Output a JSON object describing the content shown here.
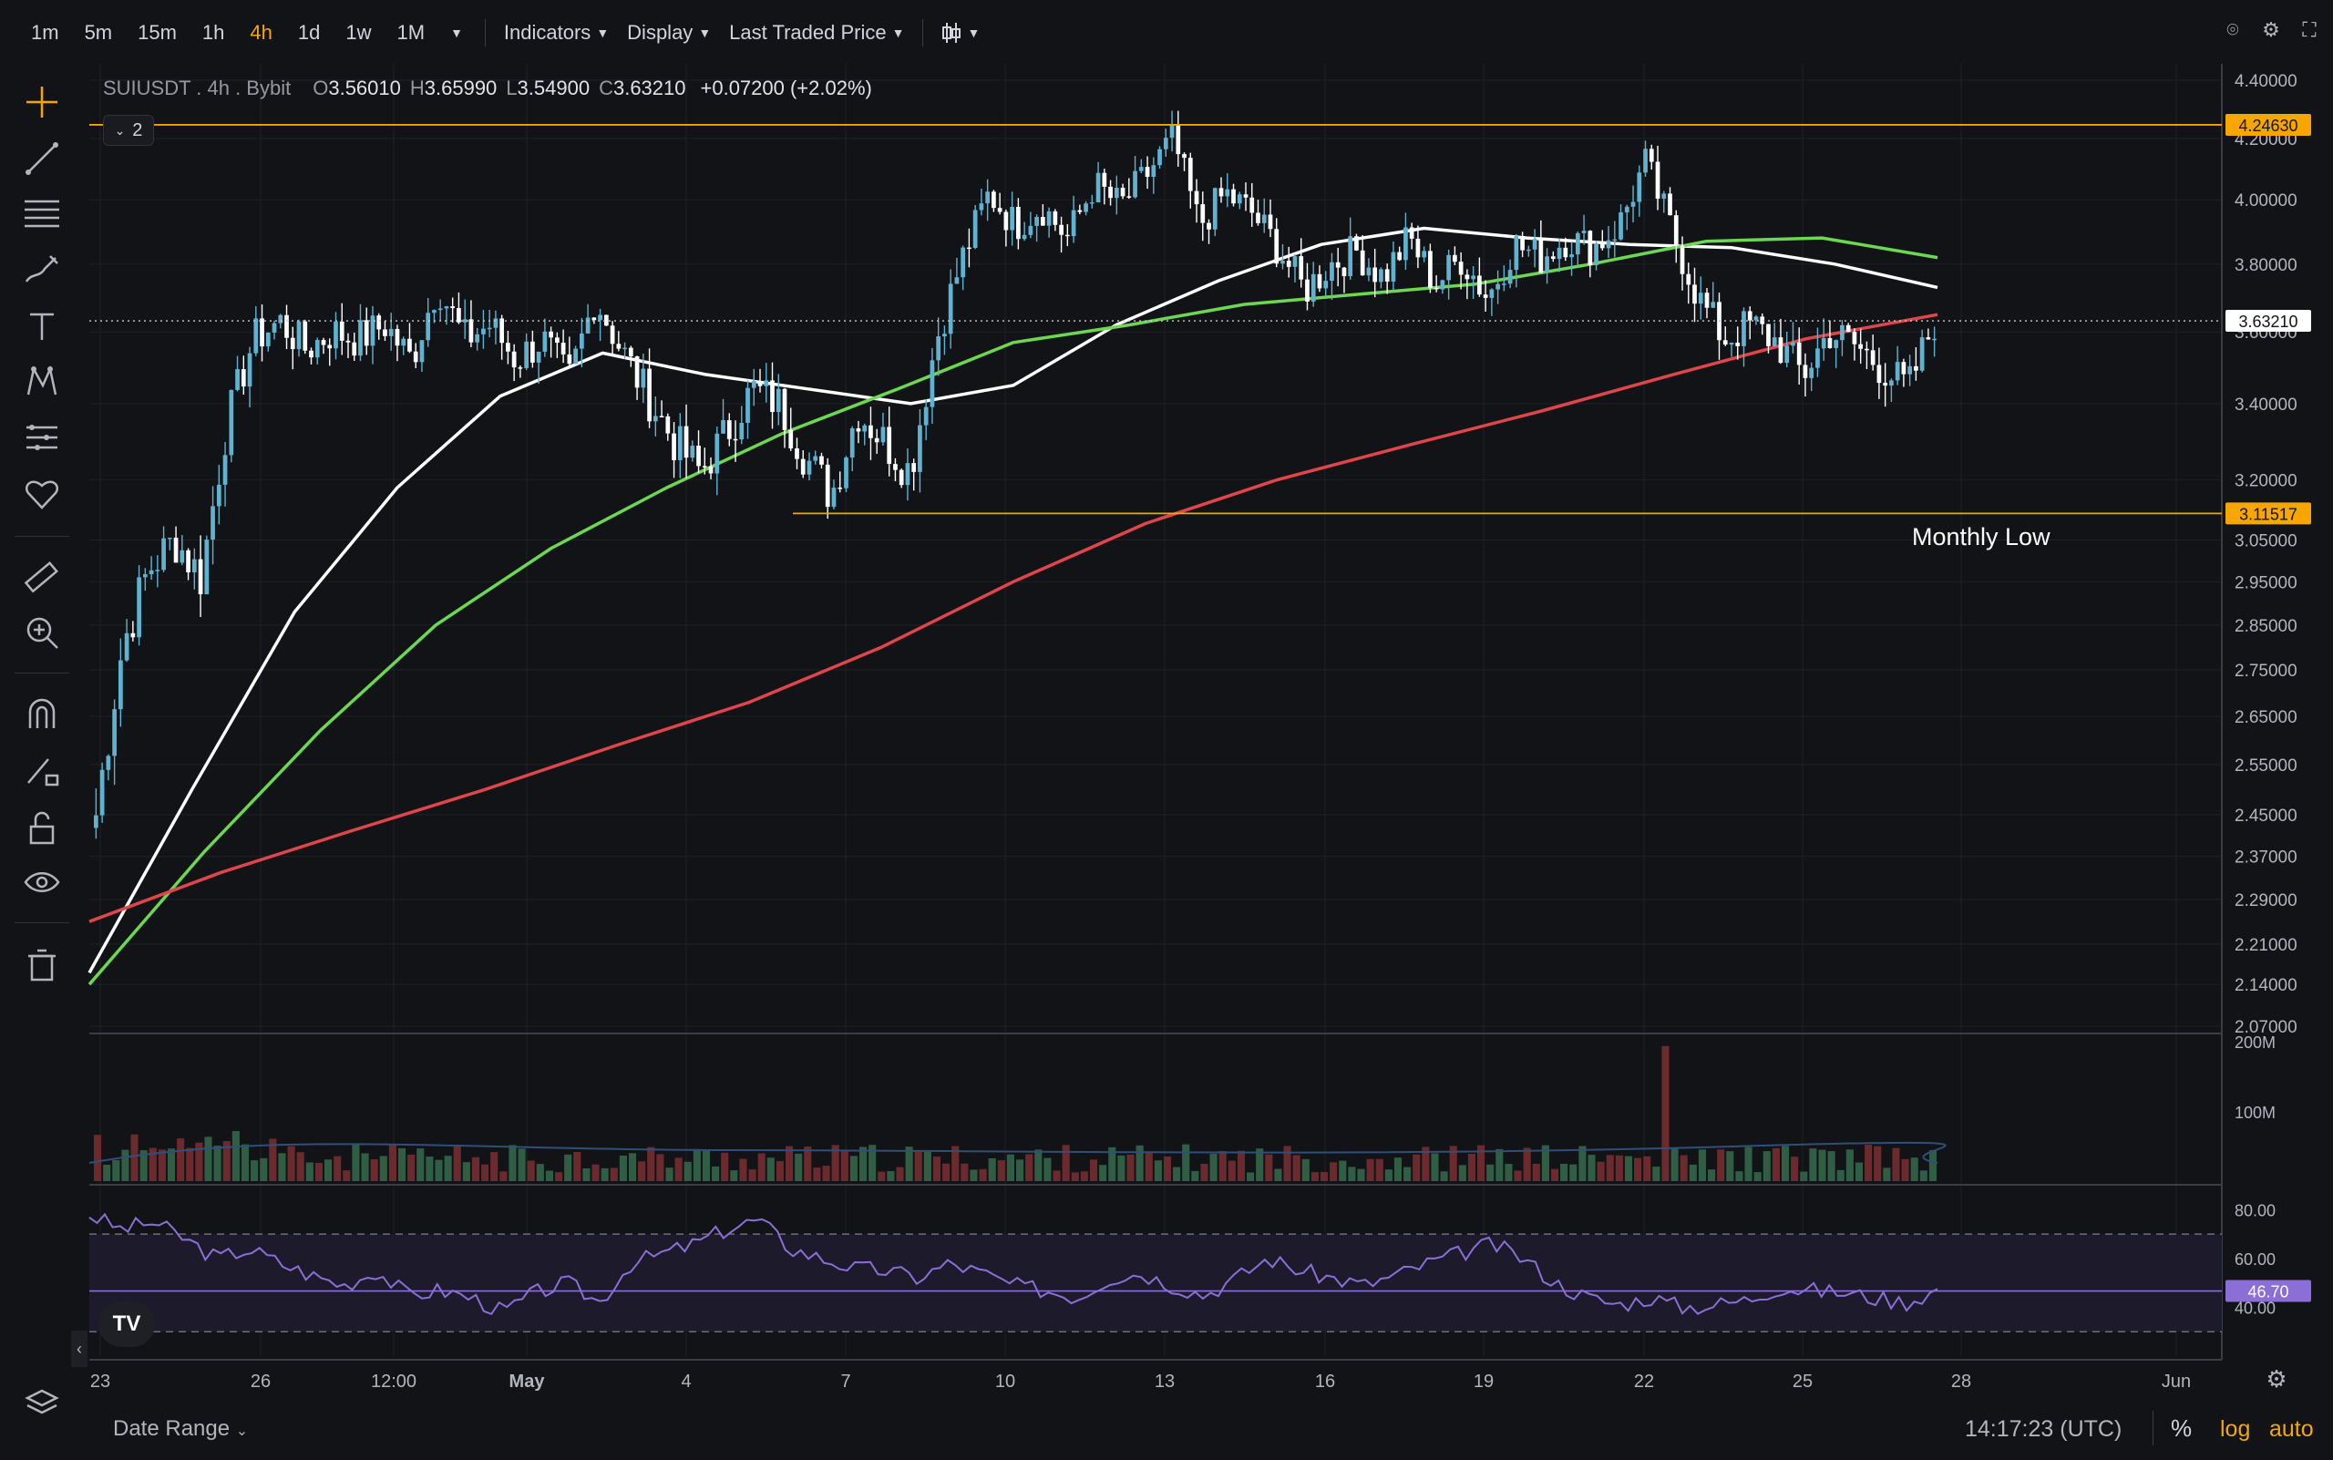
{
  "topbar": {
    "timeframes": [
      "1m",
      "5m",
      "15m",
      "1h",
      "4h",
      "1d",
      "1w",
      "1M"
    ],
    "active_timeframe": "4h",
    "menus": {
      "indicators": "Indicators",
      "display": "Display",
      "price_source": "Last Traded Price"
    }
  },
  "legend": {
    "symbol": "SUIUSDT . 4h . Bybit",
    "open_label": "O",
    "open": "3.56010",
    "high_label": "H",
    "high": "3.65990",
    "low_label": "L",
    "low": "3.54900",
    "close_label": "C",
    "close": "3.63210",
    "change": "+0.07200 (+2.02%)",
    "indicators_count": "2"
  },
  "annotations": {
    "monthly_low": "Monthly Low"
  },
  "bottombar": {
    "date_range": "Date Range",
    "time": "14:17:23 (UTC)",
    "percent": "%",
    "log": "log",
    "auto": "auto"
  },
  "colors": {
    "background": "#121317",
    "up": "#5fb3d1",
    "down": "#ffffff",
    "ma_white": "#ffffff",
    "ma_green": "#6bd84f",
    "ma_red": "#e0454a",
    "level": "#f7a600",
    "rsi": "#8b6fd6"
  },
  "chart_data": [
    {
      "type": "candlestick",
      "scale": "log",
      "ylim": [
        2.07,
        4.4
      ],
      "y_ticks": [
        "4.40000",
        "4.20000",
        "4.00000",
        "3.80000",
        "3.60000",
        "3.40000",
        "3.20000",
        "3.05000",
        "2.95000",
        "2.85000",
        "2.75000",
        "2.65000",
        "2.55000",
        "2.45000",
        "2.37000",
        "2.29000",
        "2.21000",
        "2.14000",
        "2.07000"
      ],
      "x_ticks": [
        "23",
        "26",
        "12:00",
        "May",
        "4",
        "7",
        "10",
        "13",
        "16",
        "19",
        "22",
        "25",
        "28",
        "Jun"
      ],
      "price_labels": {
        "top_level": "4.24630",
        "current": "3.63210",
        "monthly_low": "3.11517"
      },
      "levels": [
        {
          "name": "top-level",
          "value": 4.2463
        },
        {
          "name": "monthly-low",
          "value": 3.11517
        }
      ],
      "close_path": [
        2.45,
        2.8,
        2.98,
        3.05,
        2.96,
        3.35,
        3.58,
        3.63,
        3.55,
        3.6,
        3.58,
        3.62,
        3.52,
        3.74,
        3.58,
        3.62,
        3.52,
        3.58,
        3.46,
        3.7,
        3.55,
        3.42,
        3.3,
        3.22,
        3.32,
        3.44,
        3.4,
        3.26,
        3.16,
        3.38,
        3.3,
        3.22,
        3.58,
        3.82,
        4.02,
        3.92,
        3.98,
        3.88,
        4.05,
        3.98,
        4.08,
        4.2,
        3.92,
        4.02,
        3.96,
        3.85,
        3.72,
        3.8,
        3.84,
        3.76,
        3.88,
        3.74,
        3.82,
        3.7,
        3.86,
        3.82,
        3.88,
        3.85,
        3.92,
        4.12,
        3.9,
        3.7,
        3.58,
        3.62,
        3.57,
        3.48,
        3.6,
        3.56,
        3.5,
        3.44,
        3.63
      ],
      "ma_series": [
        {
          "color": "white",
          "values": [
            2.16,
            2.5,
            2.88,
            3.18,
            3.42,
            3.54,
            3.48,
            3.44,
            3.4,
            3.45,
            3.62,
            3.75,
            3.86,
            3.91,
            3.88,
            3.86,
            3.85,
            3.8,
            3.73
          ]
        },
        {
          "color": "green",
          "values": [
            2.14,
            2.38,
            2.62,
            2.85,
            3.03,
            3.18,
            3.32,
            3.44,
            3.57,
            3.62,
            3.68,
            3.71,
            3.74,
            3.8,
            3.87,
            3.88,
            3.82
          ]
        },
        {
          "color": "red",
          "values": [
            2.25,
            2.34,
            2.42,
            2.5,
            2.59,
            2.68,
            2.8,
            2.95,
            3.09,
            3.2,
            3.29,
            3.38,
            3.48,
            3.58,
            3.65
          ]
        }
      ]
    },
    {
      "type": "bar",
      "name": "volume",
      "y_ticks": [
        "200M",
        "100M"
      ],
      "ylim": [
        0,
        200
      ],
      "spike": [
        {
          "at": 0.85,
          "value": 190
        }
      ]
    },
    {
      "type": "line",
      "name": "RSI",
      "y_ticks": [
        "80.00",
        "60.00",
        "40.00"
      ],
      "ylim": [
        20,
        85
      ],
      "bands": [
        70,
        30
      ],
      "current_label": "46.70",
      "current": 46.7,
      "values": [
        78,
        72,
        75,
        68,
        60,
        64,
        58,
        53,
        49,
        55,
        45,
        47,
        44,
        38,
        46,
        50,
        42,
        58,
        62,
        66,
        72,
        76,
        64,
        60,
        56,
        55,
        52,
        58,
        54,
        49,
        47,
        44,
        52,
        54,
        49,
        45,
        52,
        60,
        55,
        52,
        49,
        53,
        58,
        62,
        66,
        60,
        50,
        44,
        41,
        44,
        40,
        41,
        43,
        48,
        47,
        46,
        44,
        42,
        47
      ]
    }
  ]
}
